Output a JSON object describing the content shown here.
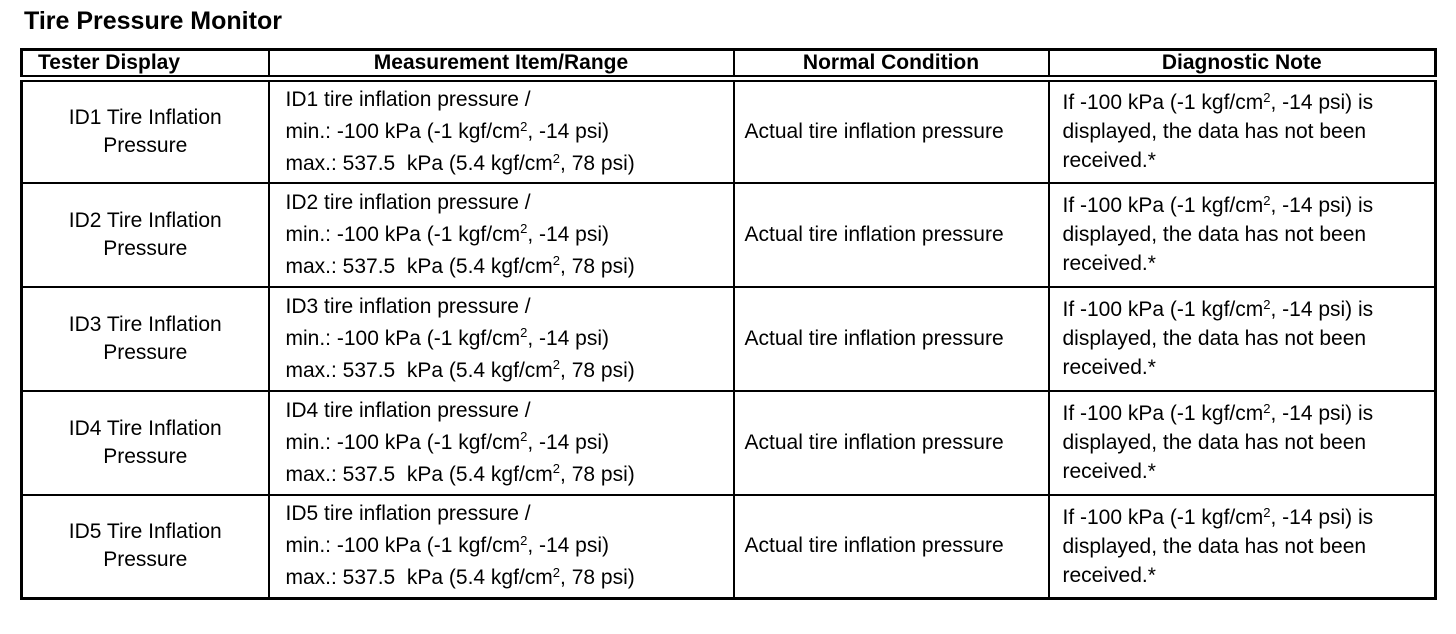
{
  "page": {
    "title": "Tire Pressure Monitor"
  },
  "table": {
    "columns": [
      "Tester Display",
      "Measurement Item/Range",
      "Normal Condition",
      "Diagnostic Note"
    ],
    "rows": [
      {
        "tester_display": "ID1 Tire Inflation Pressure",
        "measurement_item": "ID1 tire inflation pressure /",
        "measurement_min": "min.: -100 kPa (-1 kgf/cm², -14 psi)",
        "measurement_max": "max.: 537.5  kPa (5.4 kgf/cm², 78 psi)",
        "normal_condition": "Actual tire inflation pressure",
        "diagnostic_note": "If -100 kPa (-1 kgf/cm², -14 psi) is displayed, the data has not been received.*"
      },
      {
        "tester_display": "ID2 Tire Inflation Pressure",
        "measurement_item": "ID2 tire inflation pressure /",
        "measurement_min": "min.: -100 kPa (-1 kgf/cm², -14 psi)",
        "measurement_max": "max.: 537.5  kPa (5.4 kgf/cm², 78 psi)",
        "normal_condition": "Actual tire inflation pressure",
        "diagnostic_note": "If -100 kPa (-1 kgf/cm², -14 psi) is displayed, the data has not been received.*"
      },
      {
        "tester_display": "ID3 Tire Inflation Pressure",
        "measurement_item": "ID3 tire inflation pressure /",
        "measurement_min": "min.: -100 kPa (-1 kgf/cm², -14 psi)",
        "measurement_max": "max.: 537.5  kPa (5.4 kgf/cm², 78 psi)",
        "normal_condition": "Actual tire inflation pressure",
        "diagnostic_note": "If -100 kPa (-1 kgf/cm², -14 psi) is displayed, the data has not been received.*"
      },
      {
        "tester_display": "ID4 Tire Inflation Pressure",
        "measurement_item": "ID4 tire inflation pressure /",
        "measurement_min": "min.: -100 kPa (-1 kgf/cm², -14 psi)",
        "measurement_max": "max.: 537.5  kPa (5.4 kgf/cm², 78 psi)",
        "normal_condition": "Actual tire inflation pressure",
        "diagnostic_note": "If -100 kPa (-1 kgf/cm², -14 psi) is displayed, the data has not been received.*"
      },
      {
        "tester_display": "ID5 Tire Inflation Pressure",
        "measurement_item": "ID5 tire inflation pressure /",
        "measurement_min": "min.: -100 kPa (-1 kgf/cm², -14 psi)",
        "measurement_max": "max.: 537.5  kPa (5.4 kgf/cm², 78 psi)",
        "normal_condition": "Actual tire inflation pressure",
        "diagnostic_note": "If -100 kPa (-1 kgf/cm², -14 psi) is displayed, the data has not been received.*"
      }
    ]
  }
}
